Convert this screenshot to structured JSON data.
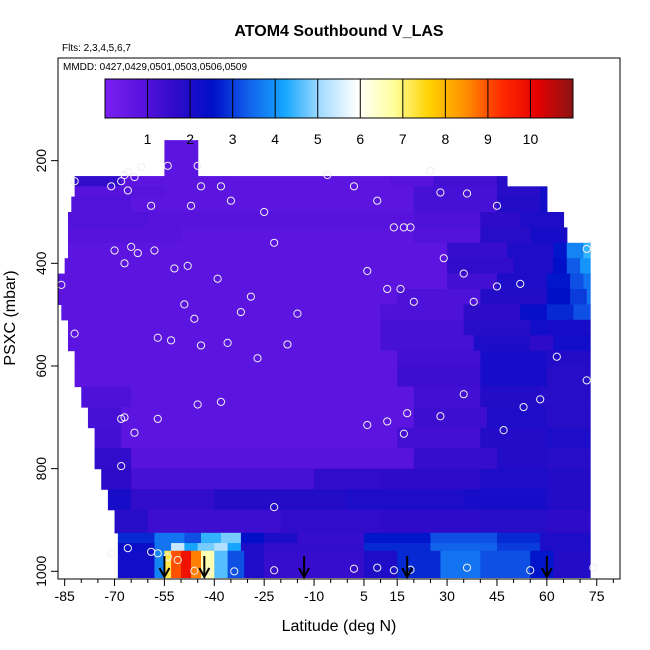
{
  "chart_data": {
    "type": "heatmap",
    "title": "ATOM4 Southbound V_LAS",
    "subtitle_flights": "Flts: 2,3,4,5,6,7",
    "subtitle_dates": "MMDD: 0427,0429,0501,0503,0506,0509",
    "xlabel": "Latitude (deg N)",
    "ylabel": "PSXC (mbar)",
    "xlim": [
      -87,
      82
    ],
    "ylim": [
      1015,
      0
    ],
    "x_ticks": [
      -85,
      -70,
      -55,
      -40,
      -25,
      -10,
      5,
      15,
      30,
      45,
      60,
      75
    ],
    "x_minor_ticks": [
      -80,
      -75,
      -65,
      -60,
      -50,
      -45,
      -35,
      -30,
      -20,
      -15,
      -5,
      0,
      10,
      20,
      25,
      35,
      40,
      50,
      55,
      65,
      70,
      80
    ],
    "y_ticks": [
      200,
      400,
      600,
      800,
      1000
    ],
    "colorbar": {
      "range": [
        0,
        11
      ],
      "ticks": [
        1,
        2,
        3,
        4,
        5,
        6,
        7,
        8,
        9,
        10
      ],
      "stops": [
        "#7a1ff0",
        "#5a13e0",
        "#2d0bc8",
        "#000fc8",
        "#1262ec",
        "#16a7ff",
        "#a5dcff",
        "#ffffff",
        "#ffffa0",
        "#ffd200",
        "#ff9000",
        "#ff2c00",
        "#e60000",
        "#8c1414"
      ]
    },
    "rows": [
      {
        "p0": 160,
        "p1": 230,
        "cells": [
          [
            -55,
            -45,
            0.8
          ]
        ]
      },
      {
        "p0": 230,
        "p1": 250,
        "cells": [
          [
            -82,
            -68,
            1.6
          ],
          [
            -68,
            -45,
            0.8
          ],
          [
            -45,
            13,
            0.8
          ],
          [
            13,
            26,
            0.9
          ],
          [
            26,
            45,
            1.3
          ],
          [
            45,
            48,
            1.8
          ]
        ]
      },
      {
        "p0": 250,
        "p1": 270,
        "cells": [
          [
            -82,
            -55,
            0.9
          ],
          [
            -55,
            20,
            0.8
          ],
          [
            20,
            45,
            1.2
          ],
          [
            45,
            58,
            1.8
          ],
          [
            58,
            60,
            2.2
          ]
        ]
      },
      {
        "p0": 270,
        "p1": 300,
        "cells": [
          [
            -83,
            -65,
            1.0
          ],
          [
            -65,
            20,
            0.8
          ],
          [
            20,
            45,
            1.2
          ],
          [
            45,
            58,
            1.9
          ],
          [
            58,
            60,
            2.2
          ]
        ]
      },
      {
        "p0": 300,
        "p1": 330,
        "cells": [
          [
            -84,
            -60,
            1.0
          ],
          [
            -60,
            20,
            0.9
          ],
          [
            20,
            40,
            1.1
          ],
          [
            40,
            52,
            1.7
          ],
          [
            52,
            65,
            2.0
          ]
        ]
      },
      {
        "p0": 330,
        "p1": 360,
        "cells": [
          [
            -84,
            -50,
            0.9
          ],
          [
            -50,
            20,
            0.8
          ],
          [
            20,
            40,
            1.0
          ],
          [
            40,
            55,
            1.8
          ],
          [
            55,
            66,
            2.1
          ]
        ]
      },
      {
        "p0": 360,
        "p1": 390,
        "cells": [
          [
            -84,
            -40,
            0.8
          ],
          [
            -40,
            30,
            0.8
          ],
          [
            30,
            48,
            1.5
          ],
          [
            48,
            62,
            2.0
          ],
          [
            62,
            66,
            2.6
          ],
          [
            66,
            71,
            3.8
          ],
          [
            71,
            73,
            4.4
          ]
        ]
      },
      {
        "p0": 390,
        "p1": 420,
        "cells": [
          [
            -85,
            -40,
            0.8
          ],
          [
            -40,
            30,
            0.8
          ],
          [
            30,
            50,
            1.6
          ],
          [
            50,
            62,
            2.0
          ],
          [
            62,
            66,
            2.5
          ],
          [
            66,
            70,
            3.3
          ],
          [
            70,
            73,
            4.0
          ]
        ]
      },
      {
        "p0": 420,
        "p1": 450,
        "cells": [
          [
            -87,
            -30,
            0.8
          ],
          [
            -30,
            30,
            0.8
          ],
          [
            30,
            45,
            1.3
          ],
          [
            45,
            60,
            2.0
          ],
          [
            60,
            67,
            2.6
          ],
          [
            67,
            71,
            3.2
          ],
          [
            71,
            73,
            3.6
          ]
        ]
      },
      {
        "p0": 450,
        "p1": 480,
        "cells": [
          [
            -87,
            15,
            0.8
          ],
          [
            15,
            40,
            1.1
          ],
          [
            40,
            60,
            1.9
          ],
          [
            60,
            67,
            2.5
          ],
          [
            67,
            72,
            3.0
          ],
          [
            72,
            73,
            3.6
          ]
        ]
      },
      {
        "p0": 480,
        "p1": 510,
        "cells": [
          [
            -86,
            10,
            0.8
          ],
          [
            10,
            35,
            1.1
          ],
          [
            35,
            52,
            1.7
          ],
          [
            52,
            60,
            2.4
          ],
          [
            60,
            68,
            2.8
          ],
          [
            68,
            73,
            3.2
          ]
        ]
      },
      {
        "p0": 510,
        "p1": 540,
        "cells": [
          [
            -84,
            10,
            0.8
          ],
          [
            10,
            35,
            1.2
          ],
          [
            35,
            55,
            1.8
          ],
          [
            55,
            60,
            2.2
          ],
          [
            60,
            73,
            2.1
          ]
        ]
      },
      {
        "p0": 540,
        "p1": 570,
        "cells": [
          [
            -84,
            10,
            0.8
          ],
          [
            10,
            38,
            1.2
          ],
          [
            38,
            55,
            2.0
          ],
          [
            55,
            62,
            1.7
          ],
          [
            62,
            73,
            2.2
          ]
        ]
      },
      {
        "p0": 570,
        "p1": 600,
        "cells": [
          [
            -82,
            15,
            0.8
          ],
          [
            15,
            40,
            1.3
          ],
          [
            40,
            60,
            2.1
          ],
          [
            60,
            73,
            1.9
          ]
        ]
      },
      {
        "p0": 600,
        "p1": 640,
        "cells": [
          [
            -82,
            15,
            0.8
          ],
          [
            15,
            40,
            1.4
          ],
          [
            40,
            60,
            2.1
          ],
          [
            60,
            73,
            1.8
          ]
        ]
      },
      {
        "p0": 640,
        "p1": 680,
        "cells": [
          [
            -80,
            -65,
            1.1
          ],
          [
            -65,
            20,
            0.8
          ],
          [
            20,
            40,
            1.3
          ],
          [
            40,
            58,
            1.9
          ],
          [
            58,
            73,
            1.8
          ]
        ]
      },
      {
        "p0": 680,
        "p1": 720,
        "cells": [
          [
            -78,
            -68,
            1.2
          ],
          [
            -68,
            20,
            0.8
          ],
          [
            20,
            42,
            1.4
          ],
          [
            42,
            60,
            2.0
          ],
          [
            60,
            73,
            1.8
          ]
        ]
      },
      {
        "p0": 720,
        "p1": 760,
        "cells": [
          [
            -76,
            -68,
            1.3
          ],
          [
            -68,
            15,
            0.8
          ],
          [
            15,
            40,
            1.3
          ],
          [
            40,
            60,
            1.9
          ],
          [
            60,
            73,
            2.0
          ]
        ]
      },
      {
        "p0": 760,
        "p1": 800,
        "cells": [
          [
            -76,
            -65,
            1.6
          ],
          [
            -65,
            20,
            0.9
          ],
          [
            20,
            45,
            1.5
          ],
          [
            45,
            60,
            1.9
          ],
          [
            60,
            73,
            1.8
          ]
        ]
      },
      {
        "p0": 800,
        "p1": 840,
        "cells": [
          [
            -74,
            -65,
            1.7
          ],
          [
            -65,
            -10,
            1.2
          ],
          [
            -10,
            10,
            1.6
          ],
          [
            10,
            40,
            1.7
          ],
          [
            40,
            60,
            2.0
          ],
          [
            60,
            73,
            1.9
          ]
        ]
      },
      {
        "p0": 840,
        "p1": 880,
        "cells": [
          [
            -72,
            -65,
            2.1
          ],
          [
            -65,
            -40,
            1.6
          ],
          [
            -40,
            0,
            1.9
          ],
          [
            0,
            35,
            2.0
          ],
          [
            35,
            60,
            2.1
          ],
          [
            60,
            73,
            1.9
          ]
        ]
      },
      {
        "p0": 880,
        "p1": 925,
        "cells": [
          [
            -70,
            -60,
            1.8
          ],
          [
            -60,
            -20,
            1.4
          ],
          [
            -20,
            10,
            1.6
          ],
          [
            10,
            40,
            1.7
          ],
          [
            40,
            60,
            1.8
          ],
          [
            60,
            73,
            1.7
          ]
        ]
      },
      {
        "p0": 925,
        "p1": 945,
        "cells": [
          [
            -69,
            -58,
            2.8
          ],
          [
            -58,
            -49,
            3.6
          ],
          [
            -49,
            -44,
            3.2
          ],
          [
            -44,
            -38,
            4.4
          ],
          [
            -38,
            -32,
            4.8
          ],
          [
            -32,
            -25,
            2.5
          ],
          [
            -25,
            -15,
            2.0
          ],
          [
            -15,
            5,
            1.5
          ],
          [
            5,
            25,
            2.6
          ],
          [
            25,
            45,
            3.2
          ],
          [
            45,
            58,
            2.8
          ],
          [
            58,
            73,
            2.0
          ]
        ]
      },
      {
        "p0": 945,
        "p1": 960,
        "cells": [
          [
            -69,
            -58,
            2.3
          ],
          [
            -58,
            -53,
            3.6
          ],
          [
            -53,
            -49,
            5.4
          ],
          [
            -49,
            -45,
            4.2
          ],
          [
            -45,
            -40,
            4.8
          ],
          [
            -40,
            -36,
            5.2
          ],
          [
            -36,
            -32,
            4.2
          ],
          [
            -32,
            -25,
            2.0
          ],
          [
            -25,
            5,
            1.6
          ],
          [
            5,
            25,
            2.8
          ],
          [
            25,
            45,
            3.4
          ],
          [
            45,
            58,
            3.0
          ],
          [
            58,
            73,
            2.0
          ]
        ]
      },
      {
        "p0": 960,
        "p1": 1012,
        "cells": [
          [
            -69,
            -58,
            2.2
          ],
          [
            -58,
            -55,
            3.8
          ],
          [
            -55,
            -53,
            7.2
          ],
          [
            -53,
            -50,
            9.0
          ],
          [
            -50,
            -47,
            9.8
          ],
          [
            -47,
            -44,
            8.6
          ],
          [
            -44,
            -40,
            6.6
          ],
          [
            -40,
            -36,
            4.6
          ],
          [
            -36,
            -31,
            3.2
          ],
          [
            -31,
            -25,
            2.0
          ],
          [
            -25,
            5,
            1.5
          ],
          [
            5,
            15,
            2.0
          ],
          [
            15,
            28,
            2.8
          ],
          [
            28,
            40,
            3.6
          ],
          [
            40,
            55,
            3.2
          ],
          [
            55,
            62,
            2.6
          ],
          [
            62,
            73,
            1.9
          ]
        ]
      }
    ],
    "points": [
      [
        -82,
        240
      ],
      [
        -71,
        250
      ],
      [
        -68,
        240
      ],
      [
        -67,
        228
      ],
      [
        -66,
        222
      ],
      [
        -66,
        258
      ],
      [
        -64,
        232
      ],
      [
        -62,
        212
      ],
      [
        -59,
        288
      ],
      [
        -54,
        210
      ],
      [
        -47,
        288
      ],
      [
        -45,
        210
      ],
      [
        -44,
        250
      ],
      [
        -38,
        250
      ],
      [
        -35,
        278
      ],
      [
        -25,
        300
      ],
      [
        -6,
        228
      ],
      [
        2,
        250
      ],
      [
        9,
        278
      ],
      [
        14,
        330
      ],
      [
        17,
        330
      ],
      [
        19,
        330
      ],
      [
        25,
        220
      ],
      [
        28,
        262
      ],
      [
        36,
        264
      ],
      [
        45,
        288
      ],
      [
        -70,
        375
      ],
      [
        -65,
        368
      ],
      [
        -63,
        380
      ],
      [
        -67,
        400
      ],
      [
        -58,
        375
      ],
      [
        -52,
        410
      ],
      [
        -48,
        405
      ],
      [
        -39,
        430
      ],
      [
        -29,
        465
      ],
      [
        -22,
        360
      ],
      [
        -15,
        498
      ],
      [
        6,
        415
      ],
      [
        12,
        450
      ],
      [
        16,
        450
      ],
      [
        20,
        475
      ],
      [
        29,
        390
      ],
      [
        35,
        420
      ],
      [
        38,
        475
      ],
      [
        45,
        445
      ],
      [
        52,
        440
      ],
      [
        72,
        372
      ],
      [
        -86,
        442
      ],
      [
        -82,
        537
      ],
      [
        -57,
        545
      ],
      [
        -53,
        550
      ],
      [
        -49,
        480
      ],
      [
        -46,
        508
      ],
      [
        -44,
        560
      ],
      [
        -36,
        555
      ],
      [
        -32,
        495
      ],
      [
        -27,
        585
      ],
      [
        -18,
        558
      ],
      [
        63,
        582
      ],
      [
        -67,
        700
      ],
      [
        -68,
        703
      ],
      [
        -57,
        703
      ],
      [
        -64,
        730
      ],
      [
        -45,
        675
      ],
      [
        -38,
        670
      ],
      [
        6,
        715
      ],
      [
        12,
        708
      ],
      [
        17,
        732
      ],
      [
        18,
        692
      ],
      [
        28,
        698
      ],
      [
        35,
        655
      ],
      [
        47,
        725
      ],
      [
        53,
        680
      ],
      [
        58,
        665
      ],
      [
        72,
        628
      ],
      [
        -68,
        795
      ],
      [
        -22,
        875
      ],
      [
        -71,
        965
      ],
      [
        -66,
        955
      ],
      [
        -59,
        962
      ],
      [
        -57,
        965
      ],
      [
        -54,
        972
      ],
      [
        -51,
        978
      ],
      [
        -46,
        999
      ],
      [
        -42,
        1000
      ],
      [
        -34,
        1000
      ],
      [
        -22,
        998
      ],
      [
        2,
        995
      ],
      [
        9,
        993
      ],
      [
        14,
        998
      ],
      [
        19,
        997
      ],
      [
        36,
        993
      ],
      [
        55,
        998
      ],
      [
        74,
        993
      ]
    ],
    "arrows": [
      -55,
      -43,
      -13,
      18,
      60
    ]
  }
}
